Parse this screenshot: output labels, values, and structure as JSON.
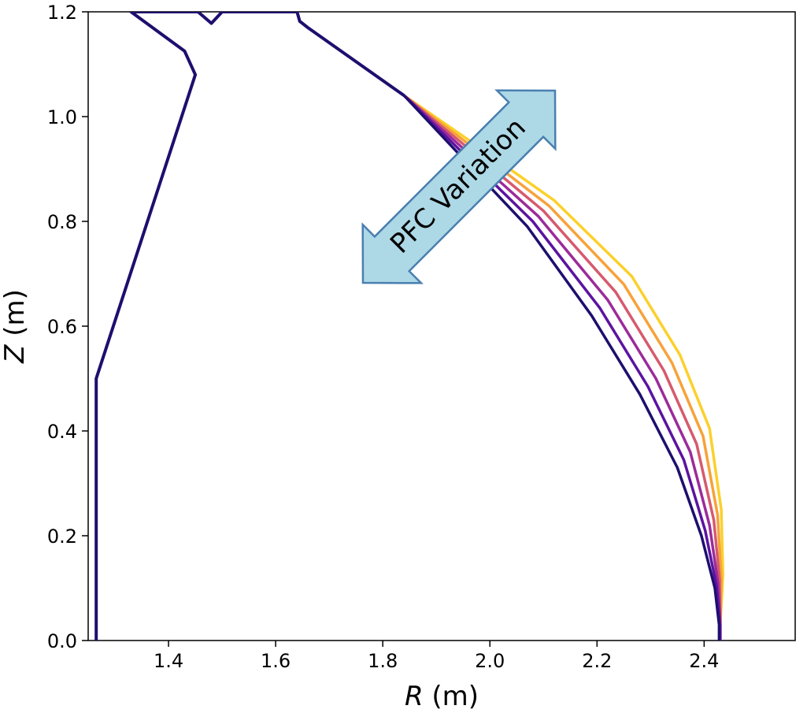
{
  "chart_data": {
    "type": "line",
    "title": "",
    "xlabel_var": "R",
    "xlabel_unit": " (m)",
    "ylabel_var": "Z",
    "ylabel_unit": " (m)",
    "xlim": [
      1.25,
      2.57
    ],
    "ylim": [
      0.0,
      1.2
    ],
    "xticks": [
      "1.4",
      "1.6",
      "1.8",
      "2.0",
      "2.2",
      "2.4"
    ],
    "yticks": [
      "0.0",
      "0.2",
      "0.4",
      "0.6",
      "0.8",
      "1.0",
      "1.2"
    ],
    "grid": false,
    "annotation": {
      "text": "PFC Variation",
      "direction": "double-arrow",
      "fill_color": "#add8e6",
      "stroke_color": "#4a7fb0"
    },
    "wall": {
      "color": "#1d0f6e",
      "x": [
        1.265,
        1.265,
        1.45,
        1.45,
        1.43,
        1.33,
        1.455,
        1.48,
        1.5,
        1.64,
        1.645,
        1.66,
        1.84
      ],
      "y": [
        0.0,
        0.5,
        1.08,
        1.08,
        1.125,
        1.2,
        1.2,
        1.178,
        1.2,
        1.2,
        1.182,
        1.17,
        1.04
      ]
    },
    "series": [
      {
        "color": "#1d0f6e",
        "x": [
          1.84,
          1.95,
          2.07,
          2.19,
          2.28,
          2.35,
          2.395,
          2.42,
          2.428,
          2.428
        ],
        "y": [
          1.04,
          0.92,
          0.79,
          0.62,
          0.47,
          0.33,
          0.2,
          0.1,
          0.03,
          0.0
        ]
      },
      {
        "color": "#5c13a0",
        "x": [
          1.84,
          1.955,
          2.08,
          2.205,
          2.295,
          2.362,
          2.402,
          2.423,
          2.43,
          2.43
        ],
        "y": [
          1.04,
          0.925,
          0.8,
          0.635,
          0.485,
          0.345,
          0.21,
          0.105,
          0.03,
          0.0
        ]
      },
      {
        "color": "#9c2b9a",
        "x": [
          1.84,
          1.96,
          2.09,
          2.22,
          2.31,
          2.374,
          2.41,
          2.426,
          2.43,
          2.43
        ],
        "y": [
          1.04,
          0.93,
          0.81,
          0.65,
          0.5,
          0.36,
          0.22,
          0.11,
          0.03,
          0.0
        ]
      },
      {
        "color": "#d65a6e",
        "x": [
          1.84,
          1.965,
          2.1,
          2.235,
          2.325,
          2.386,
          2.418,
          2.429,
          2.43,
          2.43
        ],
        "y": [
          1.04,
          0.935,
          0.82,
          0.665,
          0.515,
          0.375,
          0.23,
          0.115,
          0.03,
          0.0
        ]
      },
      {
        "color": "#f7a23a",
        "x": [
          1.84,
          1.97,
          2.11,
          2.25,
          2.34,
          2.398,
          2.425,
          2.432,
          2.43,
          2.43
        ],
        "y": [
          1.04,
          0.94,
          0.83,
          0.68,
          0.53,
          0.39,
          0.24,
          0.12,
          0.03,
          0.0
        ]
      },
      {
        "color": "#fcd02b",
        "x": [
          1.84,
          1.975,
          2.12,
          2.265,
          2.355,
          2.41,
          2.432,
          2.435,
          2.43,
          2.43
        ],
        "y": [
          1.04,
          0.945,
          0.84,
          0.695,
          0.545,
          0.405,
          0.25,
          0.125,
          0.03,
          0.0
        ]
      }
    ]
  }
}
